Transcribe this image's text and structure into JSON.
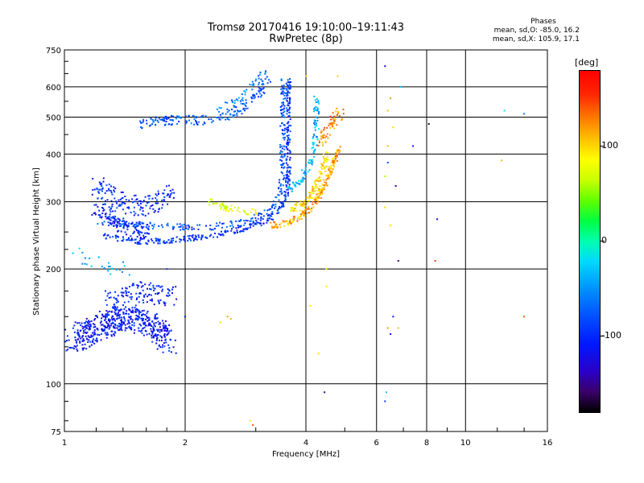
{
  "chart_data": {
    "type": "scatter",
    "title": "Tromsø 20170416 19:10:00–19:11:43",
    "subtitle": "RwPretec (8p)",
    "phases_title": "Phases",
    "phases_o": "mean, sd,O: -85.0, 16.2",
    "phases_x": "mean, sd,X: 105.9, 17.1",
    "xlabel": "Frequency [MHz]",
    "ylabel": "Stationary phase Virtual Height [km]",
    "x_scale": "log",
    "y_scale": "log",
    "xlim": [
      1,
      16
    ],
    "ylim": [
      75,
      750
    ],
    "x_ticks": [
      {
        "label": "1",
        "v": 1
      },
      {
        "label": "2",
        "v": 2
      },
      {
        "label": "4",
        "v": 4
      },
      {
        "label": "6",
        "v": 6
      },
      {
        "label": "8",
        "v": 8
      },
      {
        "label": "10",
        "v": 10
      },
      {
        "label": "16",
        "v": 16
      }
    ],
    "y_ticks": [
      {
        "label": "75",
        "v": 75
      },
      {
        "label": "100",
        "v": 100
      },
      {
        "label": "200",
        "v": 200
      },
      {
        "label": "300",
        "v": 300
      },
      {
        "label": "400",
        "v": 400
      },
      {
        "label": "500",
        "v": 500
      },
      {
        "label": "600",
        "v": 600
      },
      {
        "label": "750",
        "v": 750
      }
    ],
    "grid": true,
    "colorbar": {
      "label": "[deg]",
      "range": [
        -180,
        180
      ],
      "ticks": [
        {
          "label": "100",
          "v": 100
        },
        {
          "label": "0",
          "v": 0
        },
        {
          "label": "-100",
          "v": -100
        }
      ]
    },
    "traces": [
      {
        "segments": [
          [
            1.25,
            245
          ],
          [
            1.4,
            238
          ],
          [
            1.6,
            236
          ],
          [
            1.8,
            237
          ],
          [
            2.0,
            240
          ],
          [
            2.3,
            244
          ],
          [
            2.6,
            250
          ],
          [
            2.9,
            258
          ],
          [
            3.2,
            268
          ],
          [
            3.4,
            282
          ],
          [
            3.55,
            305
          ],
          [
            3.6,
            330
          ],
          [
            3.62,
            370
          ],
          [
            3.62,
            420
          ],
          [
            3.62,
            480
          ],
          [
            3.62,
            560
          ],
          [
            3.62,
            640
          ]
        ],
        "phase": -95,
        "n": 380,
        "jitter": 7
      },
      {
        "segments": [
          [
            1.22,
            265
          ],
          [
            1.4,
            262
          ],
          [
            1.6,
            260
          ],
          [
            1.9,
            258
          ],
          [
            2.2,
            257
          ],
          [
            2.5,
            260
          ],
          [
            2.8,
            265
          ],
          [
            3.1,
            275
          ],
          [
            3.3,
            290
          ],
          [
            3.45,
            315
          ],
          [
            3.5,
            360
          ],
          [
            3.5,
            420
          ],
          [
            3.5,
            520
          ],
          [
            3.52,
            630
          ]
        ],
        "phase": -80,
        "n": 260,
        "jitter": 8
      },
      {
        "segments": [
          [
            1.2,
            290
          ],
          [
            1.3,
            270
          ],
          [
            1.45,
            255
          ],
          [
            1.6,
            250
          ]
        ],
        "phase": -105,
        "n": 120,
        "jitter": 18
      },
      {
        "segments": [
          [
            1.2,
            330
          ],
          [
            1.35,
            300
          ],
          [
            1.5,
            290
          ],
          [
            1.7,
            300
          ],
          [
            1.85,
            320
          ]
        ],
        "phase": -100,
        "n": 160,
        "jitter": 25
      },
      {
        "segments": [
          [
            1.55,
            480
          ],
          [
            1.8,
            490
          ],
          [
            2.1,
            490
          ],
          [
            2.4,
            495
          ],
          [
            2.7,
            520
          ],
          [
            2.95,
            555
          ],
          [
            3.1,
            590
          ],
          [
            3.2,
            630
          ]
        ],
        "phase": -75,
        "n": 180,
        "jitter": 12
      },
      {
        "segments": [
          [
            2.4,
            520
          ],
          [
            2.8,
            570
          ],
          [
            3.0,
            620
          ],
          [
            3.2,
            660
          ]
        ],
        "phase": -60,
        "n": 40,
        "jitter": 10
      },
      {
        "segments": [
          [
            3.3,
            260
          ],
          [
            3.6,
            264
          ],
          [
            3.9,
            275
          ],
          [
            4.1,
            290
          ],
          [
            4.3,
            310
          ],
          [
            4.5,
            340
          ],
          [
            4.7,
            380
          ],
          [
            4.85,
            420
          ]
        ],
        "phase": 115,
        "n": 200,
        "jitter": 8
      },
      {
        "segments": [
          [
            3.7,
            285
          ],
          [
            4.0,
            300
          ],
          [
            4.25,
            330
          ],
          [
            4.4,
            360
          ],
          [
            4.5,
            400
          ]
        ],
        "phase": 95,
        "n": 110,
        "jitter": 9
      },
      {
        "segments": [
          [
            3.6,
            320
          ],
          [
            3.9,
            345
          ],
          [
            4.1,
            380
          ],
          [
            4.2,
            420
          ],
          [
            4.25,
            470
          ],
          [
            4.25,
            560
          ]
        ],
        "phase": -35,
        "n": 110,
        "jitter": 8
      },
      {
        "segments": [
          [
            4.3,
            420
          ],
          [
            4.5,
            460
          ],
          [
            4.7,
            490
          ],
          [
            4.9,
            520
          ]
        ],
        "phase": 125,
        "n": 60,
        "jitter": 15
      },
      {
        "segments": [
          [
            2.3,
            300
          ],
          [
            2.5,
            290
          ],
          [
            2.7,
            285
          ],
          [
            2.9,
            282
          ],
          [
            3.1,
            282
          ]
        ],
        "phase": 80,
        "n": 50,
        "jitter": 8
      },
      {
        "segments": [
          [
            1.05,
            130
          ],
          [
            1.2,
            140
          ],
          [
            1.4,
            150
          ],
          [
            1.6,
            145
          ],
          [
            1.75,
            135
          ],
          [
            1.8,
            128
          ]
        ],
        "phase": -110,
        "n": 520,
        "jitter": 30
      },
      {
        "segments": [
          [
            1.3,
            165
          ],
          [
            1.5,
            175
          ],
          [
            1.7,
            170
          ],
          [
            1.85,
            170
          ]
        ],
        "phase": -105,
        "n": 120,
        "jitter": 25
      },
      {
        "segments": [
          [
            1.05,
            220
          ],
          [
            1.25,
            205
          ],
          [
            1.45,
            195
          ]
        ],
        "phase": -40,
        "n": 25,
        "jitter": 20
      }
    ],
    "extra_points": [
      [
        6.3,
        680,
        -140
      ],
      [
        6.5,
        560,
        120
      ],
      [
        6.4,
        520,
        110
      ],
      [
        6.6,
        470,
        100
      ],
      [
        6.9,
        600,
        -30
      ],
      [
        7.4,
        420,
        -130
      ],
      [
        8.1,
        480,
        -170
      ],
      [
        8.5,
        270,
        -120
      ],
      [
        8.4,
        210,
        150
      ],
      [
        12.5,
        520,
        -20
      ],
      [
        14.0,
        510,
        -60
      ],
      [
        12.3,
        385,
        110
      ],
      [
        14.0,
        150,
        140
      ],
      [
        6.4,
        420,
        110
      ],
      [
        6.3,
        350,
        60
      ],
      [
        6.7,
        330,
        -150
      ],
      [
        6.4,
        380,
        -80
      ],
      [
        6.8,
        210,
        -160
      ],
      [
        6.3,
        290,
        100
      ],
      [
        6.5,
        260,
        100
      ],
      [
        6.6,
        150,
        -110
      ],
      [
        6.5,
        135,
        -120
      ],
      [
        6.3,
        90,
        -90
      ],
      [
        6.35,
        95,
        -30
      ],
      [
        4.45,
        95,
        -150
      ],
      [
        4.3,
        120,
        100
      ],
      [
        4.8,
        640,
        100
      ],
      [
        4.0,
        640,
        100
      ],
      [
        4.5,
        200,
        90
      ],
      [
        4.5,
        180,
        80
      ],
      [
        4.1,
        160,
        90
      ],
      [
        6.4,
        140,
        120
      ],
      [
        6.8,
        140,
        110
      ],
      [
        2.55,
        150,
        120
      ],
      [
        2.45,
        145,
        100
      ],
      [
        2.6,
        148,
        110
      ],
      [
        2.95,
        78,
        140
      ],
      [
        2.9,
        80,
        80
      ],
      [
        2.0,
        150,
        -120
      ],
      [
        2.0,
        150,
        -100
      ],
      [
        1.8,
        200,
        -90
      ],
      [
        1.05,
        220,
        -30
      ]
    ]
  }
}
